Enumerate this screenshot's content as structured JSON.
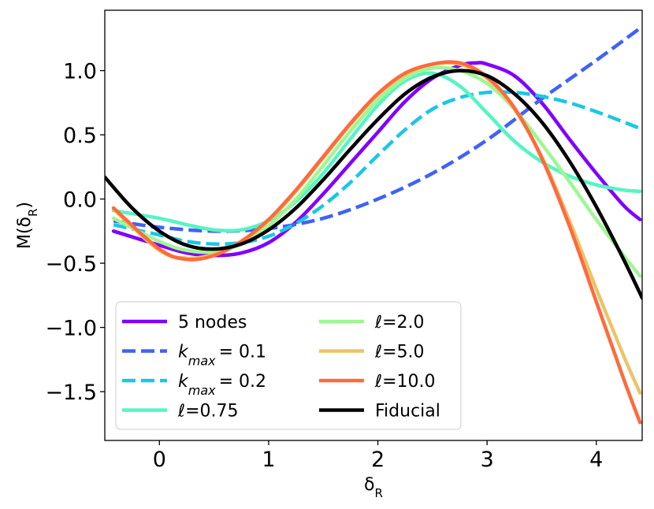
{
  "chart_data": {
    "type": "line",
    "title": "",
    "xlabel": "δ_R",
    "ylabel": "M(δ_R)",
    "xlim": [
      -0.5,
      4.42
    ],
    "ylim": [
      -1.88,
      1.47
    ],
    "xticks": [
      0,
      1,
      2,
      3,
      4
    ],
    "xtick_labels": [
      "0",
      "1",
      "2",
      "3",
      "4"
    ],
    "yticks": [
      -1.5,
      -1.0,
      -0.5,
      0.0,
      0.5,
      1.0
    ],
    "ytick_labels": [
      "−1.5",
      "−1.0",
      "−0.5",
      "0.0",
      "0.5",
      "1.0"
    ],
    "grid": false,
    "legend_position": "lower-left",
    "series": [
      {
        "name": "5 nodes",
        "label_main": "5 nodes",
        "label_sub": "",
        "label_rest": "",
        "color": "#8000ff",
        "dash": "solid",
        "x": [
          -0.42,
          0.0,
          0.25,
          0.5,
          0.75,
          1.0,
          1.25,
          1.5,
          1.75,
          2.0,
          2.25,
          2.5,
          2.75,
          2.9,
          3.0,
          3.25,
          3.5,
          3.75,
          4.0,
          4.25,
          4.4
        ],
        "y": [
          -0.25,
          -0.36,
          -0.42,
          -0.44,
          -0.42,
          -0.34,
          -0.18,
          0.04,
          0.28,
          0.52,
          0.76,
          0.94,
          1.04,
          1.06,
          1.05,
          0.96,
          0.75,
          0.47,
          0.2,
          -0.05,
          -0.16
        ]
      },
      {
        "name": "k_max = 0.1",
        "label_main": "k",
        "label_sub": "max",
        "label_rest": "= 0.1",
        "color": "#4062f5",
        "dash": "dashed",
        "x": [
          -0.42,
          0.0,
          0.5,
          1.0,
          1.5,
          2.0,
          2.5,
          3.0,
          3.5,
          4.0,
          4.4
        ],
        "y": [
          -0.17,
          -0.22,
          -0.25,
          -0.23,
          -0.15,
          0.0,
          0.2,
          0.46,
          0.78,
          1.08,
          1.33
        ]
      },
      {
        "name": "k_max = 0.2",
        "label_main": "k",
        "label_sub": "max",
        "label_rest": "= 0.2",
        "color": "#1cc6e6",
        "dash": "dashed",
        "x": [
          -0.42,
          0.0,
          0.25,
          0.5,
          0.75,
          1.0,
          1.25,
          1.5,
          1.75,
          2.0,
          2.25,
          2.5,
          2.75,
          3.0,
          3.25,
          3.5,
          3.75,
          4.0,
          4.25,
          4.4
        ],
        "y": [
          -0.2,
          -0.28,
          -0.33,
          -0.35,
          -0.34,
          -0.29,
          -0.19,
          -0.05,
          0.13,
          0.34,
          0.54,
          0.7,
          0.79,
          0.83,
          0.83,
          0.8,
          0.75,
          0.68,
          0.6,
          0.55
        ]
      },
      {
        "name": "ℓ=0.75",
        "label_main": "ℓ=0.75",
        "label_sub": "",
        "label_rest": "",
        "color": "#56f4c4",
        "dash": "solid",
        "x": [
          -0.42,
          0.0,
          0.25,
          0.5,
          0.75,
          1.0,
          1.25,
          1.5,
          1.75,
          2.0,
          2.25,
          2.5,
          2.75,
          3.0,
          3.25,
          3.5,
          3.75,
          4.0,
          4.25,
          4.4
        ],
        "y": [
          -0.09,
          -0.15,
          -0.2,
          -0.24,
          -0.24,
          -0.17,
          -0.02,
          0.2,
          0.47,
          0.73,
          0.92,
          0.98,
          0.88,
          0.67,
          0.45,
          0.29,
          0.18,
          0.11,
          0.07,
          0.06
        ]
      },
      {
        "name": "ℓ=2.0",
        "label_main": "ℓ=2.0",
        "label_sub": "",
        "label_rest": "",
        "color": "#9ef793",
        "dash": "solid",
        "x": [
          -0.42,
          0.0,
          0.25,
          0.5,
          0.75,
          1.0,
          1.25,
          1.5,
          1.75,
          2.0,
          2.25,
          2.5,
          2.75,
          3.0,
          3.25,
          3.5,
          3.75,
          4.0,
          4.25,
          4.4
        ],
        "y": [
          -0.15,
          -0.33,
          -0.4,
          -0.41,
          -0.35,
          -0.21,
          0.0,
          0.26,
          0.53,
          0.77,
          0.94,
          1.02,
          1.0,
          0.9,
          0.7,
          0.43,
          0.14,
          -0.16,
          -0.44,
          -0.6
        ]
      },
      {
        "name": "ℓ=5.0",
        "label_main": "ℓ=5.0",
        "label_sub": "",
        "label_rest": "",
        "color": "#e8c56a",
        "dash": "solid",
        "x": [
          -0.42,
          0.0,
          0.25,
          0.5,
          0.75,
          1.0,
          1.25,
          1.5,
          1.75,
          2.0,
          2.25,
          2.5,
          2.75,
          3.0,
          3.25,
          3.5,
          3.75,
          4.0,
          4.25,
          4.4
        ],
        "y": [
          -0.08,
          -0.4,
          -0.46,
          -0.43,
          -0.33,
          -0.17,
          0.06,
          0.32,
          0.58,
          0.81,
          0.97,
          1.05,
          1.05,
          0.94,
          0.7,
          0.33,
          -0.16,
          -0.7,
          -1.22,
          -1.51
        ]
      },
      {
        "name": "ℓ=10.0",
        "label_main": "ℓ=10.0",
        "label_sub": "",
        "label_rest": "",
        "color": "#ff6a3d",
        "dash": "solid",
        "x": [
          -0.42,
          0.0,
          0.25,
          0.5,
          0.75,
          1.0,
          1.25,
          1.5,
          1.75,
          2.0,
          2.25,
          2.5,
          2.75,
          3.0,
          3.25,
          3.5,
          3.75,
          4.0,
          4.25,
          4.4
        ],
        "y": [
          -0.07,
          -0.39,
          -0.47,
          -0.44,
          -0.33,
          -0.16,
          0.07,
          0.33,
          0.59,
          0.82,
          0.98,
          1.05,
          1.06,
          0.95,
          0.71,
          0.32,
          -0.2,
          -0.8,
          -1.4,
          -1.74
        ]
      },
      {
        "name": "Fiducial",
        "label_main": "Fiducial",
        "label_sub": "",
        "label_rest": "",
        "color": "#000000",
        "dash": "solid",
        "x": [
          -0.5,
          -0.25,
          0.0,
          0.25,
          0.5,
          0.75,
          1.0,
          1.25,
          1.5,
          1.75,
          2.0,
          2.25,
          2.5,
          2.75,
          3.0,
          3.25,
          3.5,
          3.75,
          4.0,
          4.25,
          4.42
        ],
        "y": [
          0.17,
          -0.07,
          -0.25,
          -0.36,
          -0.39,
          -0.35,
          -0.24,
          -0.07,
          0.15,
          0.39,
          0.62,
          0.82,
          0.95,
          1.0,
          0.96,
          0.82,
          0.6,
          0.3,
          -0.06,
          -0.47,
          -0.77
        ]
      }
    ]
  }
}
